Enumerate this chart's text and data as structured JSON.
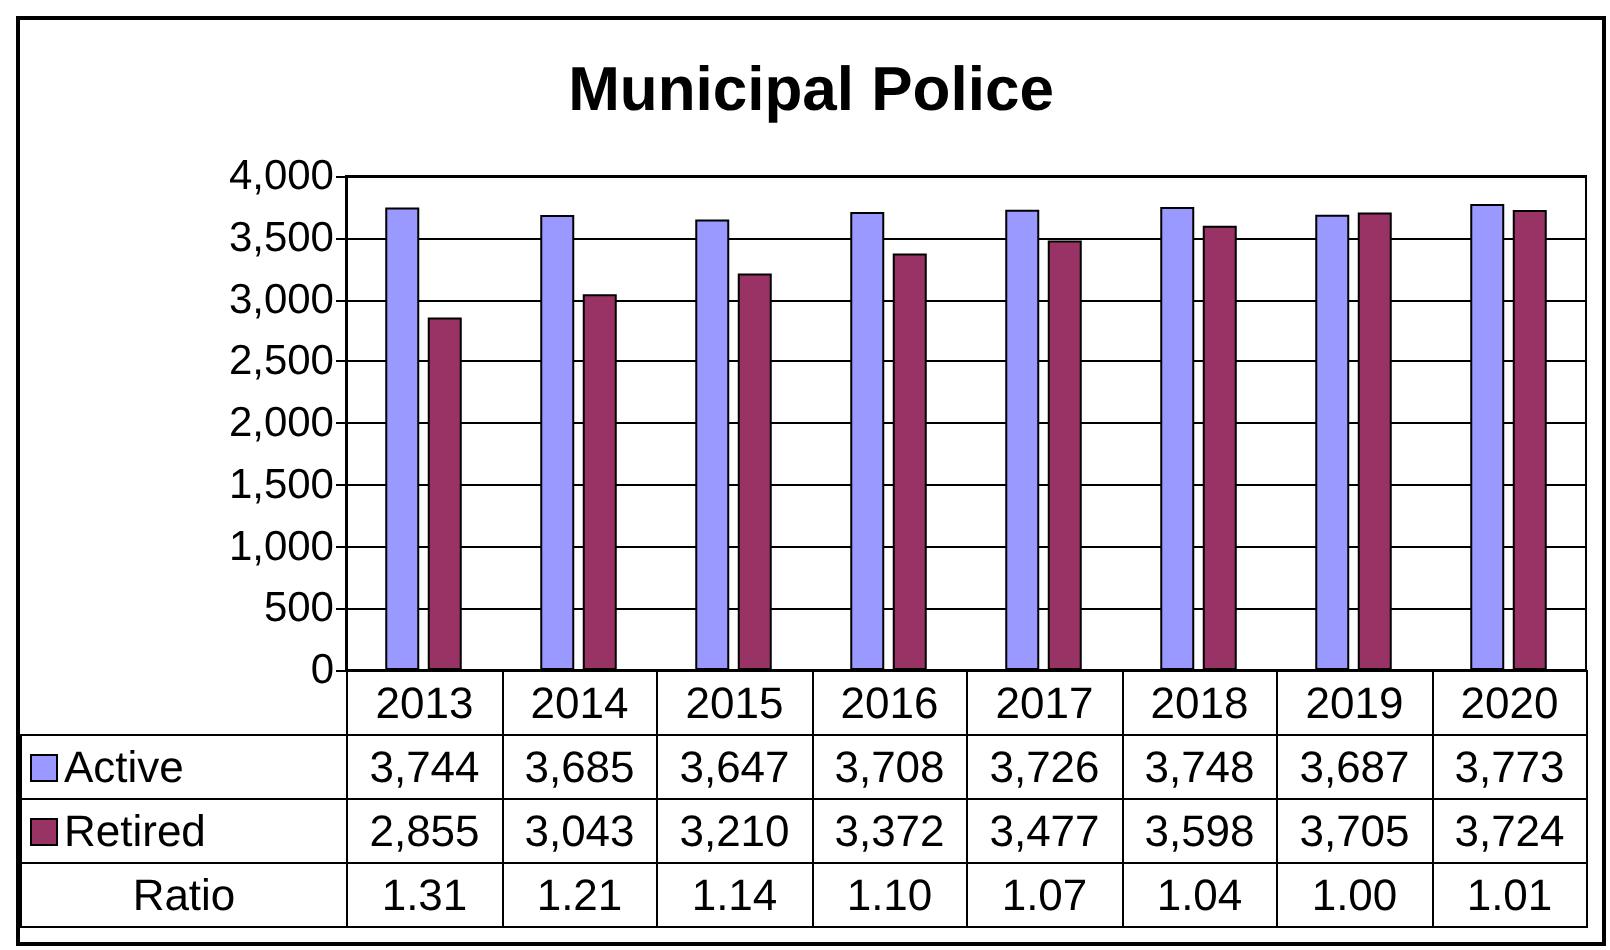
{
  "chart_data": {
    "type": "bar",
    "title": "Municipal Police",
    "categories": [
      "2013",
      "2014",
      "2015",
      "2016",
      "2017",
      "2018",
      "2019",
      "2020"
    ],
    "series": [
      {
        "name": "Active",
        "color": "#9999ff",
        "values": [
          3744,
          3685,
          3647,
          3708,
          3726,
          3748,
          3687,
          3773
        ],
        "value_labels": [
          "3,744",
          "3,685",
          "3,647",
          "3,708",
          "3,726",
          "3,748",
          "3,687",
          "3,773"
        ]
      },
      {
        "name": "Retired",
        "color": "#993366",
        "values": [
          2855,
          3043,
          3210,
          3372,
          3477,
          3598,
          3705,
          3724
        ],
        "value_labels": [
          "2,855",
          "3,043",
          "3,210",
          "3,372",
          "3,477",
          "3,598",
          "3,705",
          "3,724"
        ]
      }
    ],
    "annotations": [
      "Ratio",
      "1.31",
      "1.21",
      "1.14",
      "1.10",
      "1.07",
      "1.04",
      "1.00",
      "1.01"
    ],
    "ylim": [
      0,
      4000
    ],
    "yticks": [
      {
        "value": 0,
        "label": "0"
      },
      {
        "value": 500,
        "label": "500"
      },
      {
        "value": 1000,
        "label": "1,000"
      },
      {
        "value": 1500,
        "label": "1,500"
      },
      {
        "value": 2000,
        "label": "2,000"
      },
      {
        "value": 2500,
        "label": "2,500"
      },
      {
        "value": 3000,
        "label": "3,000"
      },
      {
        "value": 3500,
        "label": "3,500"
      },
      {
        "value": 4000,
        "label": "4,000"
      }
    ],
    "grid": "y",
    "legend": "bottom"
  }
}
